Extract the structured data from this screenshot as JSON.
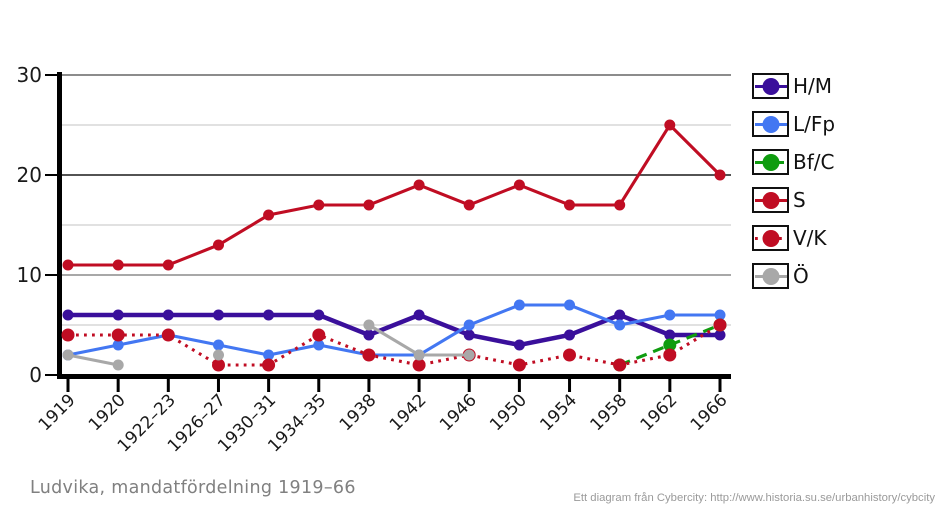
{
  "title": {
    "text": "Ludvika, mandatfördelning 1919–66"
  },
  "footer": {
    "text": "Ett diagram från Cybercity: http://www.historia.su.se/urbanhistory/cybcity"
  },
  "axis": {
    "y_tick_labels": [
      "0",
      "10",
      "20",
      "30"
    ]
  },
  "chart_data": {
    "type": "line",
    "title": "Ludvika, mandatfördelning 1919–66",
    "xlabel": "",
    "ylabel": "",
    "ylim": [
      0,
      30
    ],
    "yticks": [
      0,
      10,
      20,
      30
    ],
    "grid": "on",
    "grid_step": 5,
    "legend_position": "right",
    "categories": [
      "1919",
      "1920",
      "1922–23",
      "1926–27",
      "1930–31",
      "1934–35",
      "1938",
      "1942",
      "1946",
      "1950",
      "1954",
      "1958",
      "1962",
      "1966"
    ],
    "series": [
      {
        "name": "H/M",
        "color": "#3a0f9b",
        "line_style": "solid",
        "values": [
          6,
          6,
          6,
          6,
          6,
          6,
          4,
          6,
          4,
          3,
          4,
          6,
          4,
          4
        ]
      },
      {
        "name": "L/Fp",
        "color": "#4377f2",
        "line_style": "solid",
        "values": [
          2,
          3,
          4,
          3,
          2,
          3,
          2,
          2,
          5,
          7,
          7,
          5,
          6,
          6
        ]
      },
      {
        "name": "Bf/C",
        "color": "#0f9c0f",
        "line_style": "dashed",
        "values": [
          null,
          null,
          null,
          null,
          null,
          null,
          null,
          null,
          null,
          null,
          null,
          1,
          3,
          5
        ]
      },
      {
        "name": "S",
        "color": "#c00d23",
        "line_style": "solid",
        "values": [
          11,
          11,
          11,
          13,
          16,
          17,
          17,
          19,
          17,
          19,
          17,
          17,
          25,
          20
        ]
      },
      {
        "name": "V/K",
        "color": "#c00d23",
        "line_style": "dotted",
        "values": [
          4,
          4,
          4,
          1,
          1,
          4,
          2,
          1,
          2,
          1,
          2,
          1,
          2,
          5
        ]
      },
      {
        "name": "Ö",
        "color": "#a8a8a8",
        "line_style": "solid",
        "values": [
          2,
          1,
          null,
          2,
          null,
          null,
          5,
          2,
          2,
          null,
          null,
          null,
          null,
          null
        ]
      }
    ]
  }
}
